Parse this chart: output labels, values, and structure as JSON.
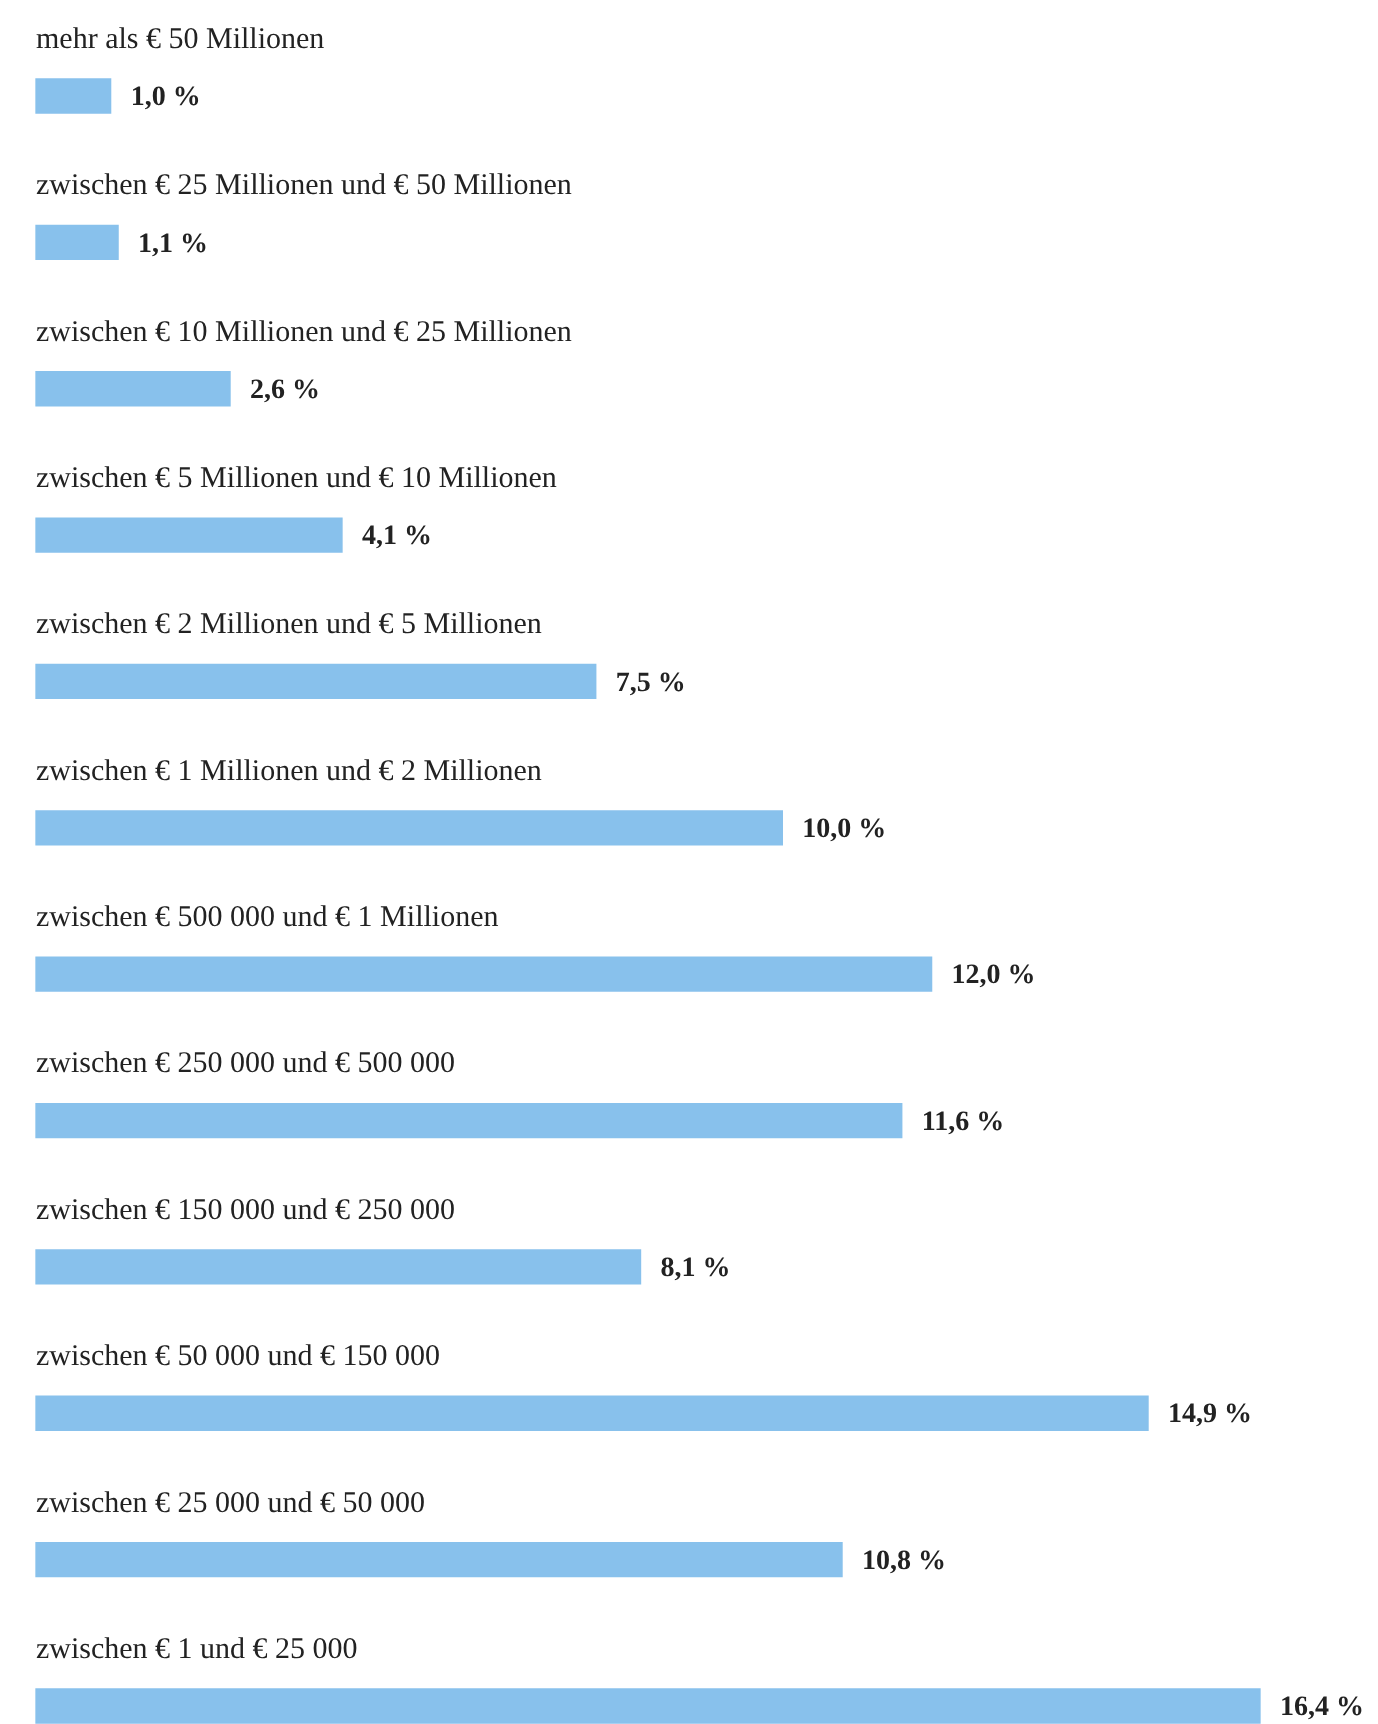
{
  "chart_data": {
    "type": "bar",
    "orientation": "horizontal",
    "categories": [
      "mehr als € 50 Millionen",
      "zwischen € 25 Millionen und € 50 Millionen",
      "zwischen € 10 Millionen und € 25 Millionen",
      "zwischen € 5 Millionen und € 10 Millionen",
      "zwischen € 2 Millionen und € 5 Millionen",
      "zwischen € 1 Millionen und € 2 Millionen",
      "zwischen € 500 000 und € 1 Millionen",
      "zwischen € 250 000 und € 500 000",
      "zwischen € 150 000 und € 250 000",
      "zwischen € 50 000 und € 150 000",
      "zwischen € 25 000 und € 50 000",
      "zwischen € 1 und € 25 000"
    ],
    "values": [
      1.0,
      1.1,
      2.6,
      4.1,
      7.5,
      10.0,
      12.0,
      11.6,
      8.1,
      14.9,
      10.8,
      16.4
    ],
    "value_labels": [
      "1,0 %",
      "1,1 %",
      "2,6 %",
      "4,1 %",
      "7,5 %",
      "10,0 %",
      "12,0 %",
      "11,6 %",
      "8,1 %",
      "14,9 %",
      "10,8 %",
      "16,4 %"
    ],
    "color": "#88c1ec",
    "legend": false
  }
}
